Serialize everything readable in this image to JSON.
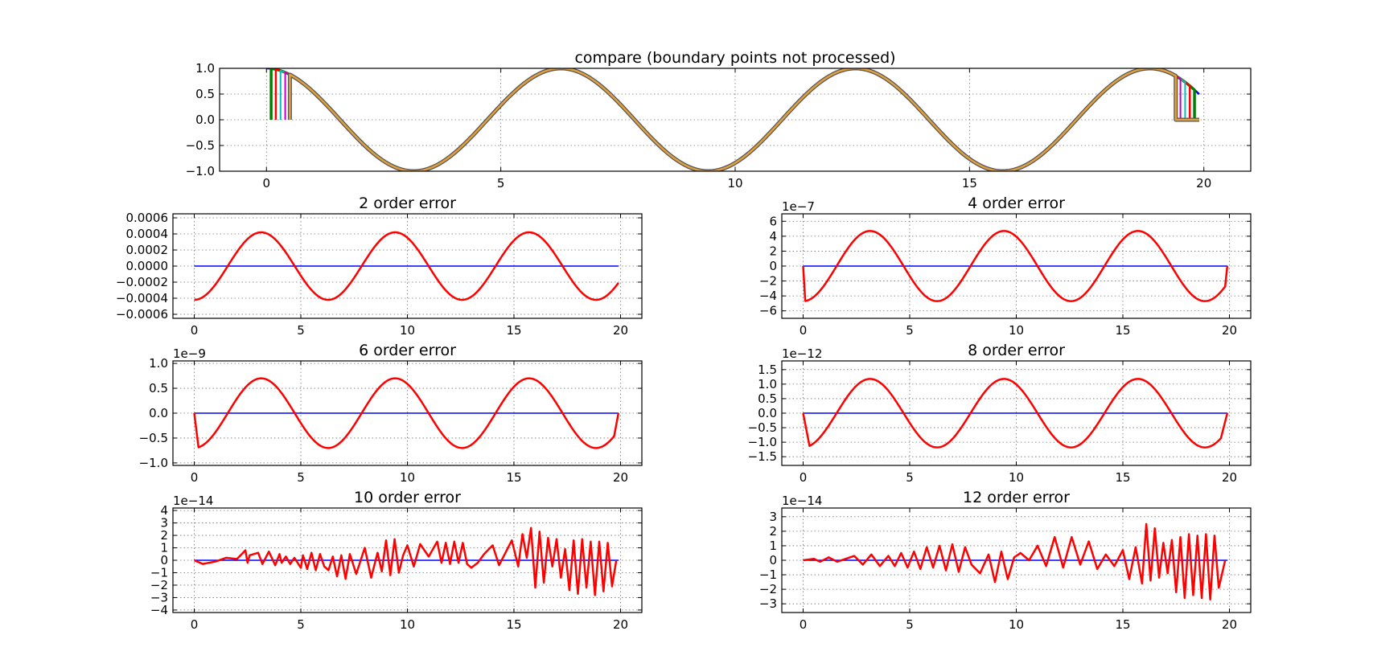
{
  "chart_data": [
    {
      "type": "line",
      "title": "compare (boundary points not processed)",
      "xlim": [
        -1,
        21
      ],
      "ylim": [
        -1.0,
        1.0
      ],
      "xticks": [
        0,
        5,
        10,
        15,
        20
      ],
      "xtick_labels": [
        "0",
        "5",
        "10",
        "15",
        "20"
      ],
      "yticks": [
        -1.0,
        -0.5,
        0.0,
        0.5,
        1.0
      ],
      "ytick_labels": [
        "−1.0",
        "−0.5",
        "0.0",
        "0.5",
        "1.0"
      ],
      "offset_text": "",
      "grid": true,
      "series": [
        {
          "kind": "cos",
          "amp": 1.0,
          "drop_left": 0.0,
          "drop_right": 0.0,
          "color": "#0000ff",
          "width": 2.5
        },
        {
          "kind": "cos",
          "amp": 1.0,
          "drop_left": 0.1,
          "drop_right": 0.1,
          "color": "#008000",
          "width": 3.5
        },
        {
          "kind": "cos",
          "amp": 1.0,
          "drop_left": 0.2,
          "drop_right": 0.2,
          "color": "#ff0000",
          "width": 2.5
        },
        {
          "kind": "cos",
          "amp": 1.0,
          "drop_left": 0.3,
          "drop_right": 0.3,
          "color": "#00bfbf",
          "width": 2.0
        },
        {
          "kind": "cos",
          "amp": 1.0,
          "drop_left": 0.4,
          "drop_right": 0.4,
          "color": "#bf00bf",
          "width": 2.0
        },
        {
          "kind": "cos",
          "amp": 1.0,
          "drop_left": 0.5,
          "drop_right": 0.5,
          "color": "#bfbf00",
          "width": 2.0
        },
        {
          "kind": "cos",
          "amp": 1.0,
          "drop_left": 0.5,
          "drop_right": 0.5,
          "color": "#555555",
          "width": 5.0
        },
        {
          "kind": "cos",
          "amp": 1.0,
          "drop_left": 0.5,
          "drop_right": 0.5,
          "color": "#e0a040",
          "width": 2.5
        }
      ]
    },
    {
      "type": "line",
      "title": "2 order error",
      "xlim": [
        -1,
        21
      ],
      "ylim": [
        -0.00065,
        0.00065
      ],
      "xticks": [
        0,
        5,
        10,
        15,
        20
      ],
      "xtick_labels": [
        "0",
        "5",
        "10",
        "15",
        "20"
      ],
      "yticks": [
        -0.0006,
        -0.0004,
        -0.0002,
        0.0,
        0.0002,
        0.0004,
        0.0006
      ],
      "ytick_labels": [
        "−0.0006",
        "−0.0004",
        "−0.0002",
        "0.0000",
        "0.0002",
        "0.0004",
        "0.0006"
      ],
      "offset_text": "",
      "grid": true,
      "series": [
        {
          "kind": "zero",
          "color": "#0000ff",
          "width": 1.5
        },
        {
          "kind": "err",
          "amp": 0.00042,
          "edge": 0.0,
          "color": "#ff0000",
          "width": 2.5
        }
      ]
    },
    {
      "type": "line",
      "title": "4 order error",
      "xlim": [
        -1,
        21
      ],
      "ylim": [
        -7,
        7
      ],
      "xticks": [
        0,
        5,
        10,
        15,
        20
      ],
      "xtick_labels": [
        "0",
        "5",
        "10",
        "15",
        "20"
      ],
      "yticks": [
        -6,
        -4,
        -2,
        0,
        2,
        4,
        6
      ],
      "ytick_labels": [
        "−6",
        "−4",
        "−2",
        "0",
        "2",
        "4",
        "6"
      ],
      "offset_text": "1e−7",
      "grid": true,
      "series": [
        {
          "kind": "zero",
          "color": "#0000ff",
          "width": 1.5
        },
        {
          "kind": "err",
          "amp": 4.7,
          "edge": 0.1,
          "color": "#ff0000",
          "width": 2.5
        }
      ]
    },
    {
      "type": "line",
      "title": "6 order error",
      "xlim": [
        -1,
        21
      ],
      "ylim": [
        -1.05,
        1.05
      ],
      "xticks": [
        0,
        5,
        10,
        15,
        20
      ],
      "xtick_labels": [
        "0",
        "5",
        "10",
        "15",
        "20"
      ],
      "yticks": [
        -1.0,
        -0.5,
        0.0,
        0.5,
        1.0
      ],
      "ytick_labels": [
        "−1.0",
        "−0.5",
        "0.0",
        "0.5",
        "1.0"
      ],
      "offset_text": "1e−9",
      "grid": true,
      "series": [
        {
          "kind": "zero",
          "color": "#0000ff",
          "width": 1.5
        },
        {
          "kind": "err",
          "amp": 0.7,
          "edge": 0.2,
          "color": "#ff0000",
          "width": 2.5
        }
      ]
    },
    {
      "type": "line",
      "title": "8 order error",
      "xlim": [
        -1,
        21
      ],
      "ylim": [
        -1.8,
        1.8
      ],
      "xticks": [
        0,
        5,
        10,
        15,
        20
      ],
      "xtick_labels": [
        "0",
        "5",
        "10",
        "15",
        "20"
      ],
      "yticks": [
        -1.5,
        -1.0,
        -0.5,
        0.0,
        0.5,
        1.0,
        1.5
      ],
      "ytick_labels": [
        "−1.5",
        "−1.0",
        "−0.5",
        "0.0",
        "0.5",
        "1.0",
        "1.5"
      ],
      "offset_text": "1e−12",
      "grid": true,
      "series": [
        {
          "kind": "zero",
          "color": "#0000ff",
          "width": 1.5
        },
        {
          "kind": "err",
          "amp": 1.18,
          "edge": 0.3,
          "color": "#ff0000",
          "width": 2.5
        }
      ]
    },
    {
      "type": "line",
      "title": "10 order error",
      "xlim": [
        -1,
        21
      ],
      "ylim": [
        -4.2,
        4.2
      ],
      "xticks": [
        0,
        5,
        10,
        15,
        20
      ],
      "xtick_labels": [
        "0",
        "5",
        "10",
        "15",
        "20"
      ],
      "yticks": [
        -4,
        -3,
        -2,
        -1,
        0,
        1,
        2,
        3,
        4
      ],
      "ytick_labels": [
        "−4",
        "−3",
        "−2",
        "−1",
        "0",
        "1",
        "2",
        "3",
        "4"
      ],
      "offset_text": "1e−14",
      "grid": true,
      "series": [
        {
          "kind": "zero",
          "color": "#0000ff",
          "width": 1.5
        },
        {
          "kind": "noise",
          "color": "#ff0000",
          "width": 2.5,
          "x": [
            0.0,
            0.4,
            1.0,
            1.5,
            2.0,
            2.4,
            2.5,
            2.6,
            3.0,
            3.2,
            3.5,
            3.8,
            4.0,
            4.1,
            4.3,
            4.5,
            4.7,
            5.0,
            5.1,
            5.3,
            5.5,
            5.7,
            5.9,
            6.1,
            6.3,
            6.5,
            6.7,
            6.9,
            7.1,
            7.3,
            7.6,
            8.0,
            8.3,
            8.6,
            8.8,
            9.0,
            9.2,
            9.4,
            9.6,
            9.8,
            10.0,
            10.3,
            10.6,
            11.0,
            11.4,
            11.6,
            11.8,
            12.0,
            12.2,
            12.4,
            12.6,
            12.8,
            13.0,
            13.3,
            13.6,
            14.0,
            14.3,
            14.6,
            14.9,
            15.2,
            15.4,
            15.6,
            15.8,
            16.0,
            16.2,
            16.4,
            16.6,
            16.8,
            17.0,
            17.2,
            17.4,
            17.6,
            17.8,
            18.0,
            18.2,
            18.4,
            18.6,
            18.8,
            19.0,
            19.2,
            19.4,
            19.6,
            19.8
          ],
          "y": [
            0.0,
            -0.3,
            -0.1,
            0.2,
            0.1,
            0.8,
            -0.2,
            0.4,
            0.6,
            -0.3,
            0.7,
            -0.4,
            0.5,
            -0.2,
            0.3,
            -0.3,
            0.2,
            -0.6,
            0.4,
            -0.7,
            0.6,
            -0.8,
            0.5,
            -0.5,
            -0.8,
            0.3,
            -1.3,
            0.4,
            -1.5,
            0.5,
            -1.1,
            1.0,
            -1.4,
            0.6,
            -0.9,
            1.6,
            -1.2,
            1.7,
            -1.0,
            0.4,
            1.2,
            -0.5,
            1.3,
            0.3,
            1.5,
            -0.2,
            1.4,
            -0.3,
            1.5,
            -0.2,
            1.4,
            -0.3,
            -0.6,
            -0.2,
            0.5,
            1.2,
            -0.4,
            0.6,
            1.6,
            -0.5,
            2.1,
            0.2,
            2.6,
            -2.2,
            2.3,
            -1.8,
            1.8,
            -0.5,
            1.7,
            -1.4,
            0.9,
            -2.4,
            1.6,
            -2.7,
            1.7,
            -2.2,
            1.5,
            -2.8,
            1.5,
            -2.5,
            1.4,
            -2.1,
            0.0
          ]
        }
      ]
    },
    {
      "type": "line",
      "title": "12 order error",
      "xlim": [
        -1,
        21
      ],
      "ylim": [
        -3.6,
        3.6
      ],
      "xticks": [
        0,
        5,
        10,
        15,
        20
      ],
      "xtick_labels": [
        "0",
        "5",
        "10",
        "15",
        "20"
      ],
      "yticks": [
        -3,
        -2,
        -1,
        0,
        1,
        2,
        3
      ],
      "ytick_labels": [
        "−3",
        "−2",
        "−1",
        "0",
        "1",
        "2",
        "3"
      ],
      "offset_text": "1e−14",
      "grid": true,
      "series": [
        {
          "kind": "zero",
          "color": "#0000ff",
          "width": 1.5
        },
        {
          "kind": "noise",
          "color": "#ff0000",
          "width": 2.5,
          "x": [
            0.0,
            0.5,
            0.8,
            1.2,
            1.6,
            2.0,
            2.4,
            2.8,
            3.2,
            3.6,
            4.0,
            4.3,
            4.6,
            4.9,
            5.2,
            5.5,
            5.8,
            6.1,
            6.4,
            6.7,
            7.0,
            7.3,
            7.6,
            7.9,
            8.3,
            8.7,
            9.0,
            9.3,
            9.6,
            9.9,
            10.2,
            10.6,
            11.0,
            11.4,
            11.8,
            12.2,
            12.6,
            13.0,
            13.4,
            13.8,
            14.2,
            14.6,
            15.0,
            15.3,
            15.6,
            15.9,
            16.1,
            16.3,
            16.5,
            16.7,
            16.9,
            17.1,
            17.3,
            17.5,
            17.7,
            17.9,
            18.1,
            18.3,
            18.5,
            18.7,
            18.9,
            19.1,
            19.3,
            19.5,
            19.8
          ],
          "y": [
            0.0,
            0.1,
            -0.1,
            0.2,
            -0.1,
            0.1,
            0.3,
            -0.3,
            0.4,
            -0.4,
            0.3,
            -0.4,
            0.5,
            -0.5,
            0.6,
            -0.6,
            0.9,
            -0.5,
            1.0,
            -0.7,
            1.1,
            -0.8,
            0.9,
            -0.3,
            -0.9,
            0.4,
            -1.5,
            0.6,
            -1.3,
            0.2,
            0.5,
            0.0,
            1.0,
            -0.4,
            1.6,
            -0.5,
            1.6,
            -0.3,
            1.3,
            -0.6,
            0.4,
            -0.4,
            0.7,
            -1.3,
            0.9,
            -1.6,
            2.5,
            -1.4,
            2.2,
            -1.2,
            1.2,
            -0.9,
            1.4,
            -2.2,
            1.6,
            -2.6,
            1.8,
            -2.4,
            1.7,
            -2.6,
            1.8,
            -2.7,
            1.7,
            -1.9,
            0.0
          ]
        }
      ]
    }
  ]
}
